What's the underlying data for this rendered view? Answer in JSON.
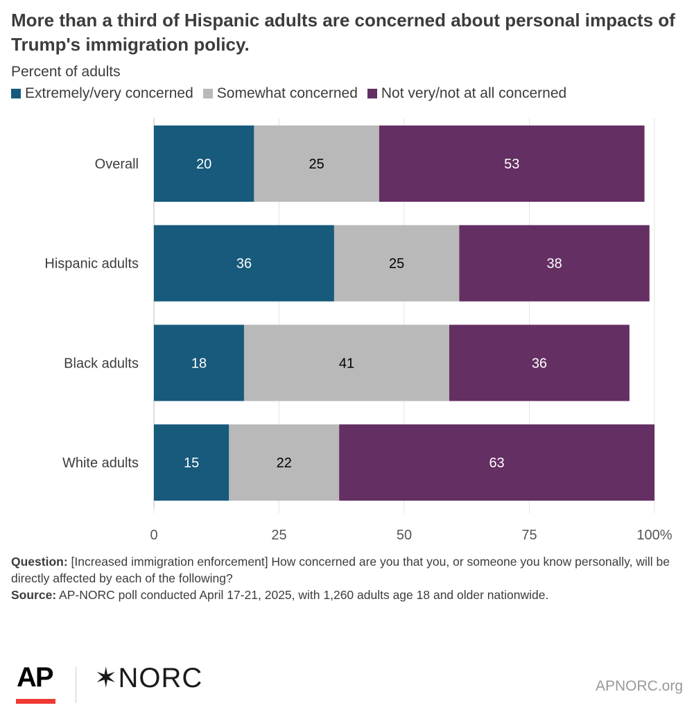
{
  "title": "More than a third of Hispanic adults are concerned about personal impacts of Trump's immigration policy.",
  "subtitle": "Percent of adults",
  "chart_data": {
    "type": "bar",
    "orientation": "horizontal",
    "stacked": true,
    "categories": [
      "Overall",
      "Hispanic adults",
      "Black adults",
      "White adults"
    ],
    "series": [
      {
        "name": "Extremely/very concerned",
        "color": "#175a7b",
        "label_color": "#ffffff",
        "values": [
          20,
          36,
          18,
          15
        ]
      },
      {
        "name": "Somewhat concerned",
        "color": "#b9b9b9",
        "label_color": "#000000",
        "values": [
          25,
          25,
          41,
          22
        ]
      },
      {
        "name": "Not very/not at all concerned",
        "color": "#642f62",
        "label_color": "#ffffff",
        "values": [
          53,
          38,
          36,
          63
        ]
      }
    ],
    "xlim": [
      0,
      100
    ],
    "xticks": [
      0,
      25,
      50,
      75,
      100
    ],
    "xtick_labels": [
      "0",
      "25",
      "50",
      "75",
      "100%"
    ],
    "grid": true,
    "legend_position": "top-left"
  },
  "notes": {
    "question_label": "Question:",
    "question": " [Increased immigration enforcement] How concerned are you that you, or someone you know personally, will be directly affected by each of the following?",
    "source_label": "Source:",
    "source": " AP-NORC poll conducted April 17-21, 2025, with 1,260 adults age 18 and older nationwide."
  },
  "footer": {
    "ap_logo": "AP",
    "norc_logo": "NORC",
    "site": "APNORC.org"
  }
}
